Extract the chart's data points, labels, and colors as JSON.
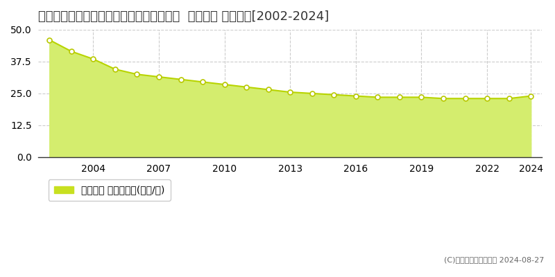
{
  "title": "和歌山県和歌山市松島字平柳１０５番２外  地価公示 地価推移[2002-2024]",
  "years": [
    2002,
    2003,
    2004,
    2005,
    2006,
    2007,
    2008,
    2009,
    2010,
    2011,
    2012,
    2013,
    2014,
    2015,
    2016,
    2017,
    2018,
    2019,
    2020,
    2021,
    2022,
    2023,
    2024
  ],
  "values": [
    46.0,
    41.5,
    38.5,
    34.5,
    32.5,
    31.5,
    30.5,
    29.5,
    28.5,
    27.5,
    26.5,
    25.5,
    25.0,
    24.5,
    24.0,
    23.5,
    23.5,
    23.5,
    23.0,
    23.0,
    23.0,
    23.0,
    24.0
  ],
  "fill_color": "#d4ed6e",
  "line_color": "#b8d400",
  "marker_color": "#ffffff",
  "marker_edge_color": "#b8c800",
  "bg_color": "#ffffff",
  "plot_bg_color": "#ffffff",
  "grid_color": "#cccccc",
  "ylim": [
    0,
    50
  ],
  "yticks": [
    0,
    12.5,
    25,
    37.5,
    50
  ],
  "xlabel": "",
  "ylabel": "",
  "legend_label": "地価公示 平均坪単価(万円/坪)",
  "legend_color": "#c8e020",
  "copyright_text": "(C)土地価格ドットコム 2024-08-27",
  "title_fontsize": 13,
  "tick_fontsize": 10,
  "legend_fontsize": 10
}
